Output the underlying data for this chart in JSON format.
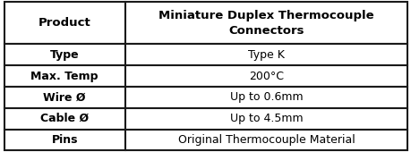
{
  "rows": [
    [
      "Product",
      "Miniature Duplex Thermocouple\nConnectors"
    ],
    [
      "Type",
      "Type K"
    ],
    [
      "Max. Temp",
      "200°C"
    ],
    [
      "Wire Ø",
      "Up to 0.6mm"
    ],
    [
      "Cable Ø",
      "Up to 4.5mm"
    ],
    [
      "Pins",
      "Original Thermocouple Material"
    ]
  ],
  "col_split": 0.3,
  "background_color": "#ffffff",
  "border_color": "#1a1a1a",
  "text_color": "#000000",
  "header_font_size": 9.5,
  "data_font_size": 9.0,
  "fig_width": 4.6,
  "fig_height": 1.7,
  "dpi": 100
}
